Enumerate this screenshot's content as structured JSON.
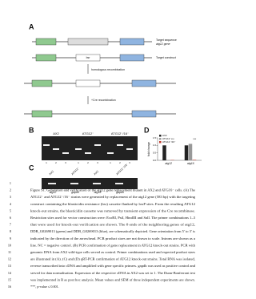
{
  "panels": {
    "a": "A",
    "b": "B",
    "c": "C",
    "d": "D"
  },
  "diagram": {
    "target": "Target sequence",
    "target_gene": "atg12 gene",
    "construct": "Target construct",
    "homologous": "homologous recombination",
    "cre": "+Cre recombination",
    "bsr": "bsr",
    "gene": "atg12"
  },
  "gel_b": {
    "lanes": [
      "AX2",
      "ATG12⁻",
      "ATG12⁻/16⁻"
    ],
    "primers": [
      "1",
      "2",
      "3"
    ]
  },
  "gel_c": {
    "lanes": [
      "AX2",
      "ATG12⁻",
      "AX2",
      "ATG12⁻/16⁻"
    ],
    "genes": [
      "atg12",
      "gapdh",
      "atg16",
      "gapdh"
    ]
  },
  "chart_d": {
    "ylabel": "fold change",
    "ylim": [
      0,
      1.5
    ],
    "yticks": [
      {
        "value": 0,
        "label": "0.0"
      },
      {
        "value": 0.5,
        "label": "0.5"
      },
      {
        "value": 1,
        "label": "1.0"
      },
      {
        "value": 1.5,
        "label": "1.5"
      }
    ],
    "categories": [
      "atg12",
      "atg16"
    ],
    "series": [
      {
        "name": "AX2",
        "color": "#222222",
        "values": [
          1,
          1
        ]
      },
      {
        "name": "ATG12⁻",
        "color": "#999999",
        "values": [
          0.02,
          1.1
        ]
      },
      {
        "name": "ATG12⁻/16⁻",
        "color": "#c0392b",
        "values": [
          0.02,
          0.03
        ]
      }
    ],
    "annotations": [
      "***",
      "***"
    ]
  },
  "line_numbers": [
    1,
    2,
    3,
    4,
    5,
    6,
    7,
    8,
    9,
    10,
    11,
    12,
    13,
    14,
    15,
    16
  ],
  "caption": [
    "Figure S1. Generation and verification of the atg12 gene replacement mutant in AX2 and ATG16⁻ cells. (A) The",
    "ATG12⁻ and ATG12⁻/16⁻ strains were generated by replacement of the atg12 gene (583 bp) with the targeting",
    "construct containing the blasticidin resistance (bsr) cassette flanked by loxP sites. From the resulting ATG12",
    "knock-out strains, the blasticidin cassette was removed by transient expression of the Cre recombinase.",
    "Restriction sites used for vector construction were: EcoRI, PstI, HindIII and SalI. The primer combinations 1–3",
    "that were used for knock-out verification are shown. The 0 ends of the neighboring genes of atg12,",
    "DDB_G0269013 (green) and DDB_G0269013 (blue), are schematically depicted. Gene orientation from 5′ to 3′ is",
    "indicated by the direction of the arrowhead. PCR product sizes are not drawn to scale. Introns are shown as a",
    "line. NC = negative control. (B) PCR confirmation of gene replacement in ATG12 knock-out strains. PCR with",
    "genomic DNA from AX2 wild-type cells served as control. Primer combinations used and expected product sizes",
    "are illustrated in (A). (C) and (D) qRT-PCR confirmation of ATG12 knock-out strains. Total RNA was isolated,",
    "reverse transcribed into cDNA and amplified with gene specific primers. gapdh was used as positive control and",
    "served for data normalisation. Expression of the respective cDNA in AX2 was set to 1. The Dunn-Bonferroni test",
    "was implemented in R as post hoc analysis. Mean values and SEM of three independent experiments are shown.",
    "***, p-value ≤ 0.001."
  ]
}
